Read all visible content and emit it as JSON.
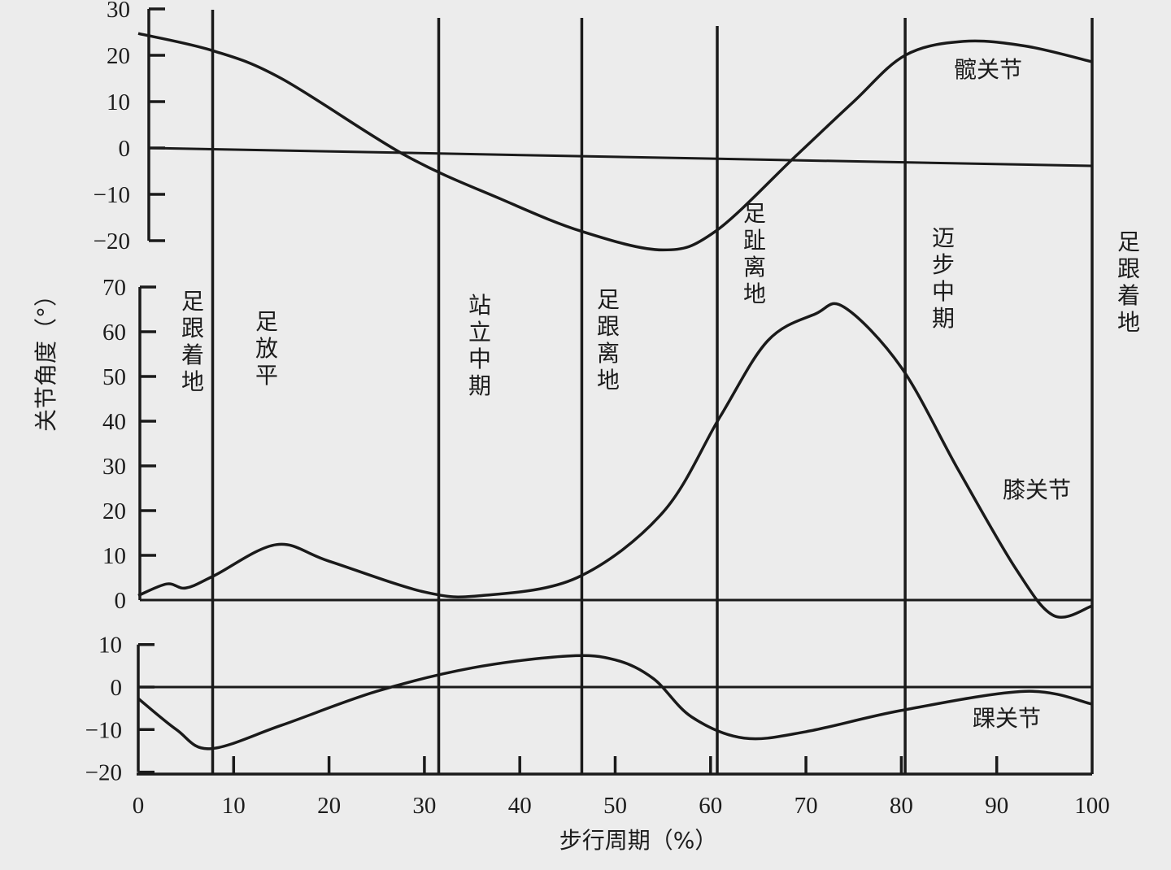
{
  "chart_data": {
    "type": "line",
    "xlabel": "步行周期（%）",
    "ylabel": "关节角度（°）",
    "xlim": [
      0,
      100
    ],
    "x_ticks": [
      0,
      10,
      20,
      30,
      40,
      50,
      60,
      70,
      80,
      90,
      100
    ],
    "grid": false,
    "panels": [
      {
        "name": "髋关节",
        "ylim": [
          -20,
          30
        ],
        "y_ticks": [
          30,
          20,
          10,
          0,
          -10,
          -20
        ],
        "x": [
          0,
          7.8,
          15,
          28,
          38,
          46.5,
          55,
          60.5,
          69,
          75,
          80.4,
          86.5,
          93,
          100
        ],
        "y": [
          24.7,
          21,
          15,
          -1.6,
          -11,
          -18,
          -22,
          -18,
          -1.6,
          10,
          20,
          23,
          22,
          18.6
        ]
      },
      {
        "name": "膝关节",
        "ylim": [
          0,
          70
        ],
        "y_ticks": [
          70,
          60,
          50,
          40,
          30,
          20,
          10,
          0
        ],
        "x": [
          0,
          3,
          5,
          8,
          14.5,
          20,
          30,
          36,
          46,
          55,
          61,
          66,
          71,
          74,
          80,
          86,
          92,
          96,
          100
        ],
        "y": [
          1,
          3.6,
          2.7,
          5.5,
          12.4,
          8.7,
          1.8,
          1,
          5,
          19.6,
          41,
          58,
          64,
          65.5,
          52,
          29,
          7,
          -3.5,
          -1.3
        ]
      },
      {
        "name": "踝关节",
        "ylim": [
          -20,
          10
        ],
        "y_ticks": [
          10,
          0,
          -10,
          -20
        ],
        "x": [
          0,
          4,
          7.5,
          15,
          25,
          35,
          45,
          50,
          54,
          58,
          63.5,
          70,
          80,
          93,
          100
        ],
        "y": [
          -2.7,
          -10,
          -14.5,
          -9,
          -1,
          4.5,
          7.3,
          6.4,
          2,
          -7,
          -12,
          -10.5,
          -5.5,
          -1,
          -4
        ]
      }
    ],
    "events": [
      {
        "x": 7.8,
        "labels": [
          "足跟着地",
          "足放平"
        ]
      },
      {
        "x": 31.5,
        "labels": [
          "站立中期"
        ]
      },
      {
        "x": 46.5,
        "labels": [
          "足跟离地"
        ]
      },
      {
        "x": 60.7,
        "labels": [
          "足趾离地"
        ]
      },
      {
        "x": 80.4,
        "labels": [
          "迈步中期"
        ]
      },
      {
        "x": 100,
        "labels": [
          "足跟着地"
        ]
      }
    ]
  }
}
